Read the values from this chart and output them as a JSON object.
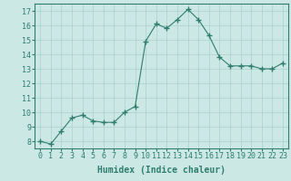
{
  "x": [
    0,
    1,
    2,
    3,
    4,
    5,
    6,
    7,
    8,
    9,
    10,
    11,
    12,
    13,
    14,
    15,
    16,
    17,
    18,
    19,
    20,
    21,
    22,
    23
  ],
  "y": [
    8.0,
    7.8,
    8.7,
    9.6,
    9.8,
    9.4,
    9.3,
    9.3,
    10.0,
    10.4,
    14.9,
    16.1,
    15.8,
    16.4,
    17.1,
    16.4,
    15.3,
    13.8,
    13.2,
    13.2,
    13.2,
    13.0,
    13.0,
    13.4
  ],
  "line_color": "#2e7d6e",
  "marker": "+",
  "marker_size": 4,
  "bg_color": "#cce8e4",
  "grid_color": "#b0d4d0",
  "xlabel": "Humidex (Indice chaleur)",
  "ylim": [
    7.5,
    17.5
  ],
  "xlim": [
    -0.5,
    23.5
  ],
  "yticks": [
    8,
    9,
    10,
    11,
    12,
    13,
    14,
    15,
    16,
    17
  ],
  "xticks": [
    0,
    1,
    2,
    3,
    4,
    5,
    6,
    7,
    8,
    9,
    10,
    11,
    12,
    13,
    14,
    15,
    16,
    17,
    18,
    19,
    20,
    21,
    22,
    23
  ],
  "tick_color": "#2e7d6e",
  "label_color": "#2e7d6e",
  "font_size_label": 7,
  "font_size_tick": 6
}
